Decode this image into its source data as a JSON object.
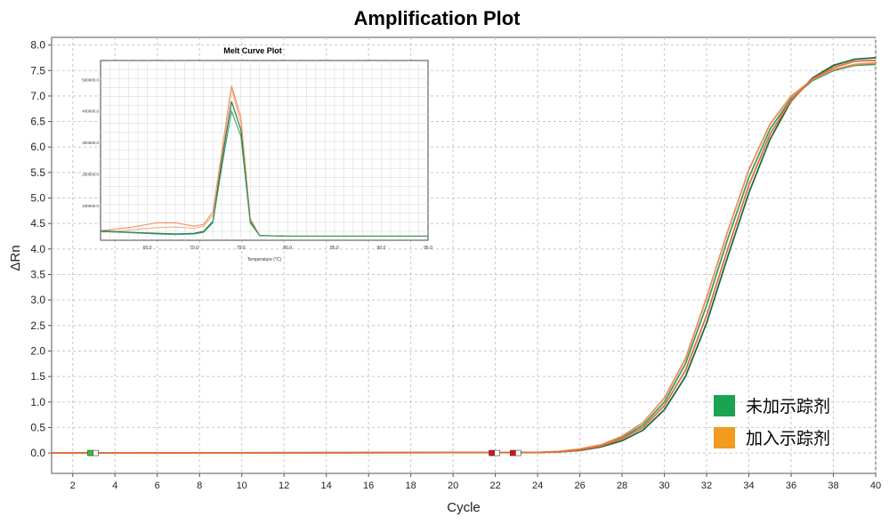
{
  "chart_data": [
    {
      "type": "line",
      "title": "Amplification Plot",
      "xlabel": "Cycle",
      "ylabel": "ΔRn",
      "xlim": [
        1,
        40
      ],
      "ylim": [
        -0.4,
        8.15
      ],
      "x_ticks": [
        "2",
        "4",
        "6",
        "8",
        "10",
        "12",
        "14",
        "16",
        "18",
        "20",
        "22",
        "24",
        "26",
        "28",
        "30",
        "32",
        "34",
        "36",
        "38",
        "40"
      ],
      "y_ticks": [
        "8.0",
        "7.5",
        "7.0",
        "6.5",
        "6.0",
        "5.5",
        "5.0",
        "4.5",
        "4.0",
        "3.5",
        "3.0",
        "2.5",
        "2.0",
        "1.5",
        "1.0",
        "0.5",
        "0.0"
      ],
      "grid": true,
      "legend_position": "lower-right",
      "legend": [
        {
          "label": "未加示踪剂",
          "color": "#1aa352"
        },
        {
          "label": "加入示踪剂",
          "color": "#f29b1f"
        }
      ],
      "x": [
        1,
        24,
        25,
        26,
        27,
        28,
        29,
        30,
        31,
        32,
        33,
        34,
        35,
        36,
        37,
        38,
        39,
        40
      ],
      "series": [
        {
          "color": "#3c9e64",
          "values": [
            0,
            0.01,
            0.03,
            0.07,
            0.15,
            0.3,
            0.55,
            1.0,
            1.75,
            2.9,
            4.2,
            5.4,
            6.35,
            6.95,
            7.3,
            7.5,
            7.6,
            7.62
          ]
        },
        {
          "color": "#1e6b45",
          "values": [
            0,
            0.01,
            0.02,
            0.05,
            0.12,
            0.24,
            0.45,
            0.85,
            1.5,
            2.55,
            3.85,
            5.1,
            6.15,
            6.9,
            7.35,
            7.6,
            7.72,
            7.75
          ]
        },
        {
          "color": "#ef8c5a",
          "values": [
            0,
            0.01,
            0.03,
            0.08,
            0.16,
            0.33,
            0.6,
            1.08,
            1.85,
            3.05,
            4.35,
            5.55,
            6.45,
            7.0,
            7.32,
            7.52,
            7.62,
            7.65
          ]
        },
        {
          "color": "#e06f3a",
          "values": [
            0,
            0.01,
            0.02,
            0.06,
            0.14,
            0.28,
            0.5,
            0.93,
            1.62,
            2.7,
            4.0,
            5.25,
            6.25,
            6.92,
            7.33,
            7.56,
            7.68,
            7.7
          ]
        }
      ],
      "markers": [
        {
          "x": 3,
          "color": "#22cc22"
        },
        {
          "x": 22,
          "color": "#dd1111"
        },
        {
          "x": 23,
          "color": "#dd1111"
        }
      ]
    },
    {
      "type": "line",
      "title": "Melt Curve Plot",
      "xlabel": "Temperature (°C)",
      "x_ticks": [
        "65.0",
        "70.0",
        "75.0",
        "80.0",
        "85.0",
        "90.0",
        "95.0"
      ],
      "y_ticks": [
        "500000.0",
        "400000.0",
        "300000.0",
        "200000.0",
        "100000.0"
      ],
      "xlim": [
        60,
        95
      ],
      "ylim": [
        -10000,
        560000
      ],
      "grid": true,
      "x": [
        60,
        63,
        66,
        68,
        70,
        71,
        72,
        73,
        74,
        75,
        76,
        77,
        80,
        85,
        90,
        95
      ],
      "series": [
        {
          "color": "#ef8c5a",
          "values": [
            20000,
            30000,
            45000,
            45000,
            35000,
            40000,
            80000,
            280000,
            480000,
            380000,
            60000,
            5000,
            3000,
            3000,
            3000,
            3000
          ]
        },
        {
          "color": "#f3ae86",
          "values": [
            15000,
            22000,
            30000,
            32000,
            28000,
            35000,
            70000,
            260000,
            470000,
            360000,
            55000,
            5000,
            3000,
            3000,
            3000,
            3000
          ]
        },
        {
          "color": "#1e6b45",
          "values": [
            20000,
            15000,
            12000,
            10000,
            12000,
            18000,
            50000,
            250000,
            430000,
            340000,
            50000,
            5000,
            3000,
            3000,
            3000,
            3000
          ]
        },
        {
          "color": "#3c9e64",
          "values": [
            18000,
            14000,
            10000,
            8000,
            10000,
            15000,
            45000,
            230000,
            400000,
            320000,
            45000,
            5000,
            3000,
            3000,
            3000,
            3000
          ]
        }
      ]
    }
  ]
}
